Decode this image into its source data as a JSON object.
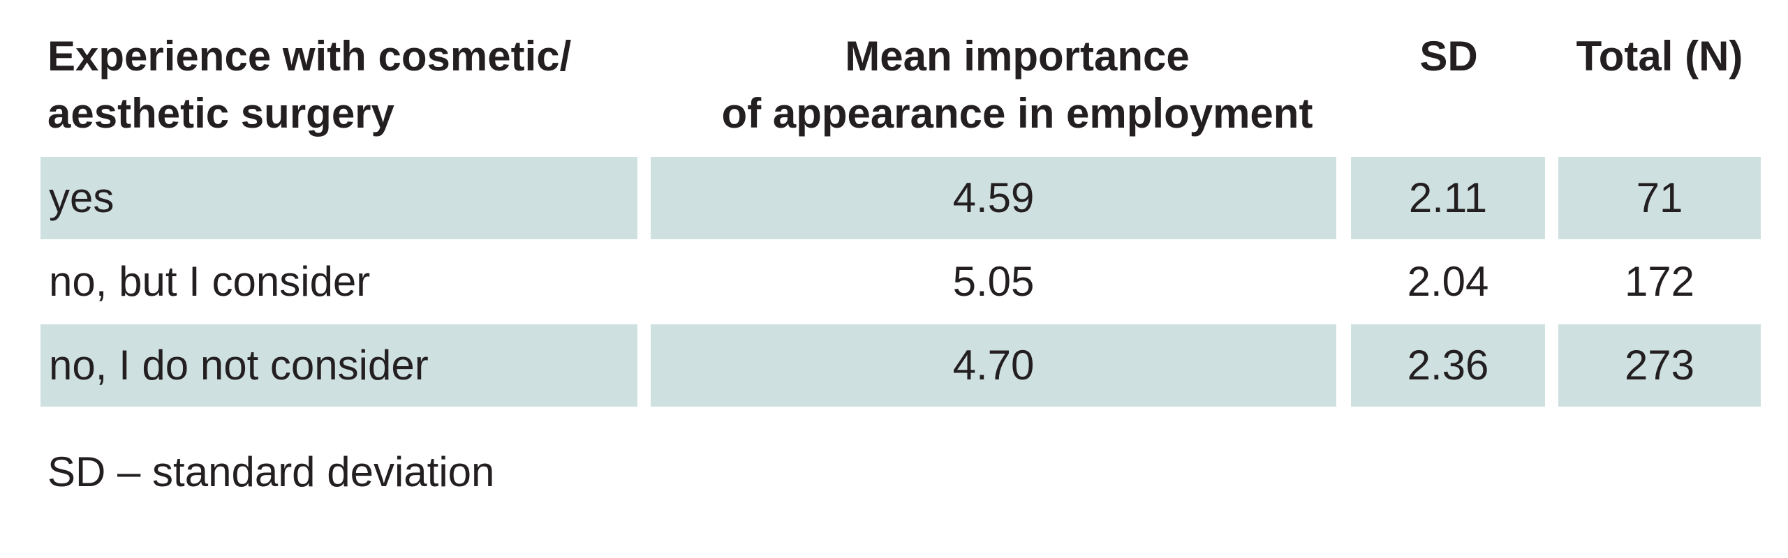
{
  "table": {
    "headers": [
      {
        "lines": [
          "Experience with cosmetic/",
          "aesthetic surgery"
        ]
      },
      {
        "lines": [
          "Mean importance",
          "of appearance in employment"
        ]
      },
      {
        "lines": [
          "SD"
        ]
      },
      {
        "lines": [
          "Total (N)"
        ]
      }
    ],
    "rows": [
      {
        "experience": "yes",
        "mean": "4.59",
        "sd": "2.11",
        "total": "71",
        "shaded": true
      },
      {
        "experience": "no, but I consider",
        "mean": "5.05",
        "sd": "2.04",
        "total": "172",
        "shaded": false
      },
      {
        "experience": "no, I do not consider",
        "mean": "4.70",
        "sd": "2.36",
        "total": "273",
        "shaded": true
      }
    ]
  },
  "footnote": "SD – standard deviation",
  "colors": {
    "row_shade": "#cfe0e1",
    "text": "#231f20"
  }
}
